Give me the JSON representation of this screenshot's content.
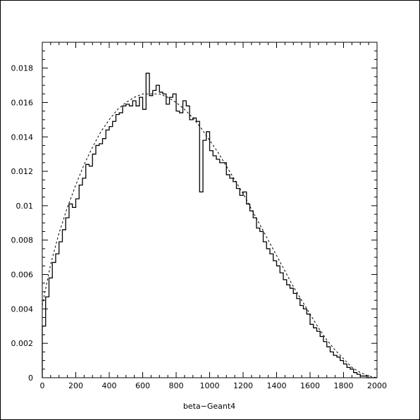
{
  "chart_data": {
    "type": "histogram",
    "title": "",
    "xlabel": "beta−Geant4",
    "ylabel": "",
    "xlim": [
      0,
      2000
    ],
    "ylim": [
      0,
      0.0195
    ],
    "x_ticks": [
      0,
      200,
      400,
      600,
      800,
      1000,
      1200,
      1400,
      1600,
      1800,
      2000
    ],
    "y_ticks": [
      0,
      0.002,
      0.004,
      0.006,
      0.008,
      0.01,
      0.012,
      0.014,
      0.016,
      0.018
    ],
    "x_tick_labels": [
      "0",
      "200",
      "400",
      "600",
      "800",
      "1000",
      "1200",
      "1400",
      "1600",
      "1800",
      "2000"
    ],
    "y_tick_labels": [
      "0",
      "0.002",
      "0.004",
      "0.006",
      "0.008",
      "0.01",
      "0.012",
      "0.014",
      "0.016",
      "0.018"
    ],
    "bin_width": 20,
    "series": [
      {
        "style": "histogram-solid",
        "bin_start": 0,
        "values": [
          0.003,
          0.0047,
          0.0058,
          0.0067,
          0.0072,
          0.0079,
          0.0086,
          0.0093,
          0.0101,
          0.0099,
          0.0104,
          0.0112,
          0.0116,
          0.0124,
          0.0123,
          0.013,
          0.0135,
          0.0136,
          0.0139,
          0.0144,
          0.0146,
          0.0149,
          0.0153,
          0.0154,
          0.0158,
          0.0159,
          0.0158,
          0.0161,
          0.0158,
          0.0163,
          0.0156,
          0.0177,
          0.0164,
          0.0167,
          0.017,
          0.0166,
          0.0165,
          0.0159,
          0.0163,
          0.0165,
          0.0155,
          0.0154,
          0.0161,
          0.0158,
          0.015,
          0.0151,
          0.0149,
          0.0108,
          0.0138,
          0.0143,
          0.0132,
          0.0129,
          0.0127,
          0.0125,
          0.0125,
          0.0118,
          0.0116,
          0.0114,
          0.011,
          0.0106,
          0.0108,
          0.0101,
          0.0097,
          0.0093,
          0.0087,
          0.0085,
          0.0079,
          0.0075,
          0.0072,
          0.0068,
          0.0065,
          0.0061,
          0.0057,
          0.0054,
          0.0052,
          0.0049,
          0.0046,
          0.0042,
          0.004,
          0.0037,
          0.0031,
          0.0029,
          0.0027,
          0.0024,
          0.0021,
          0.0018,
          0.0015,
          0.0013,
          0.0012,
          0.001,
          0.0008,
          0.0006,
          0.0005,
          0.0003,
          0.0002,
          0.0001,
          0.0001,
          0.0,
          0.0,
          0.0
        ]
      },
      {
        "style": "dashed-curve",
        "x": [
          0,
          50,
          100,
          150,
          200,
          250,
          300,
          350,
          400,
          450,
          500,
          550,
          600,
          650,
          700,
          750,
          800,
          850,
          900,
          950,
          1000,
          1050,
          1100,
          1150,
          1200,
          1250,
          1300,
          1350,
          1400,
          1450,
          1500,
          1550,
          1600,
          1650,
          1700,
          1750,
          1800,
          1850,
          1900,
          1950,
          2000
        ],
        "y": [
          0.0042,
          0.0066,
          0.0084,
          0.0099,
          0.0112,
          0.0124,
          0.0134,
          0.0143,
          0.015,
          0.0156,
          0.016,
          0.0163,
          0.0165,
          0.0165,
          0.0165,
          0.0163,
          0.016,
          0.0156,
          0.0151,
          0.0145,
          0.0138,
          0.0131,
          0.0123,
          0.0115,
          0.0107,
          0.0098,
          0.0089,
          0.008,
          0.0071,
          0.0062,
          0.0053,
          0.0045,
          0.0037,
          0.0029,
          0.0022,
          0.0016,
          0.0011,
          0.0006,
          0.0003,
          0.0001,
          0.0
        ]
      }
    ]
  }
}
